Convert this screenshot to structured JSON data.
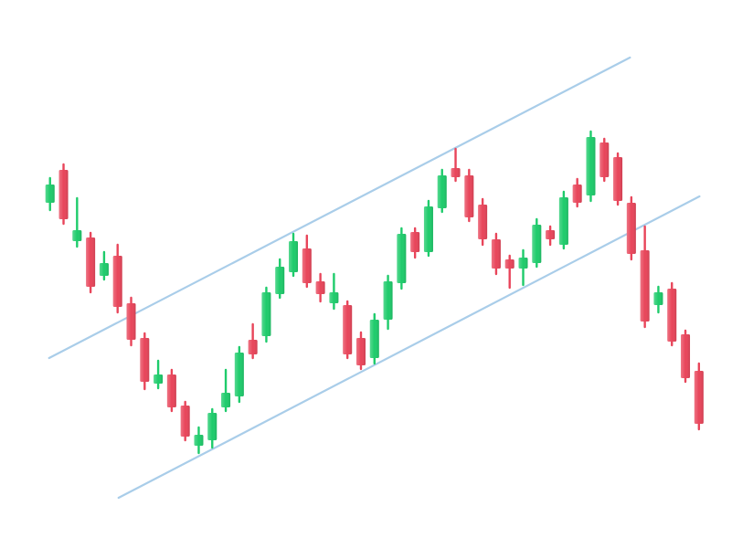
{
  "chart_data": {
    "type": "candlestick",
    "x": [
      0,
      1,
      2,
      3,
      4,
      5,
      6,
      7,
      8,
      9,
      10,
      11,
      12,
      13,
      14,
      15,
      16,
      17,
      18,
      19,
      20,
      21,
      22,
      23,
      24,
      25,
      26,
      27,
      28,
      29,
      30,
      31,
      32,
      33,
      34,
      35,
      36,
      37,
      38,
      39,
      40,
      41,
      42,
      43,
      44,
      45,
      46,
      47,
      48
    ],
    "open": [
      390,
      426,
      348,
      352,
      310,
      332,
      280,
      242,
      192,
      202,
      168,
      124,
      130,
      166,
      178,
      240,
      244,
      290,
      314,
      340,
      304,
      280,
      278,
      242,
      220,
      262,
      302,
      358,
      336,
      384,
      428,
      420,
      388,
      350,
      328,
      318,
      324,
      360,
      344,
      410,
      398,
      456,
      440,
      390,
      338,
      278,
      296,
      246,
      206
    ],
    "high": [
      417,
      432,
      395,
      357,
      336,
      344,
      286,
      247,
      217,
      207,
      172,
      144,
      164,
      207,
      232,
      257,
      297,
      328,
      356,
      354,
      312,
      312,
      282,
      248,
      268,
      310,
      362,
      362,
      392,
      426,
      449,
      426,
      394,
      356,
      332,
      338,
      372,
      364,
      402,
      416,
      468,
      460,
      444,
      396,
      364,
      298,
      302,
      250,
      214
    ],
    "low": [
      382,
      367,
      342,
      292,
      306,
      270,
      234,
      186,
      187,
      162,
      130,
      116,
      122,
      162,
      172,
      220,
      238,
      286,
      310,
      298,
      282,
      274,
      220,
      208,
      214,
      252,
      296,
      330,
      332,
      380,
      414,
      370,
      344,
      312,
      297,
      300,
      320,
      344,
      340,
      386,
      392,
      414,
      388,
      328,
      254,
      270,
      234,
      194,
      142
    ],
    "close": [
      410,
      372,
      360,
      298,
      324,
      276,
      240,
      194,
      202,
      166,
      134,
      136,
      160,
      182,
      226,
      224,
      292,
      320,
      348,
      302,
      290,
      292,
      224,
      212,
      262,
      304,
      356,
      336,
      386,
      420,
      418,
      374,
      350,
      318,
      318,
      330,
      366,
      350,
      396,
      390,
      462,
      418,
      392,
      334,
      260,
      292,
      238,
      198,
      148
    ],
    "up_color": "#1ecb6b",
    "down_color": "#e8455a",
    "xlim": [
      -3.7,
      52
    ],
    "ylim": [
      0,
      612
    ],
    "trend_lines": [
      {
        "color": "#a9cde9",
        "x": [
          -0.07,
          42.9
        ],
        "y": [
          220,
          549
        ]
      },
      {
        "color": "#a9cde9",
        "x": [
          5.07,
          48.04
        ],
        "y": [
          67,
          397
        ]
      }
    ]
  }
}
